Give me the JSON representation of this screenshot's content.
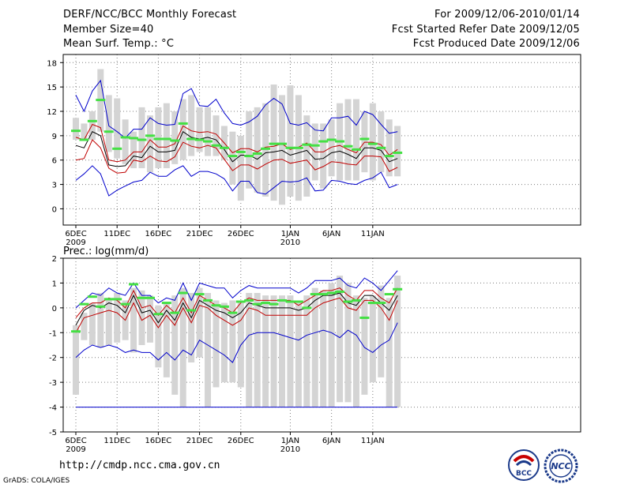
{
  "header": {
    "title": "DERF/NCC/BCC Monthly Forecast",
    "member_size": "Member Size=40",
    "variable1": "Mean Surf. Temp.: °C",
    "period": "For 2009/12/06-2010/01/14",
    "started": "Fcst Started Refer Date 2009/12/05",
    "produced": "Fcst Produced Date 2009/12/06"
  },
  "footer": {
    "url": "http://cmdp.ncc.cma.gov.cn",
    "credit": "GrADS: COLA/IGES",
    "logo_bcc": "BCC",
    "logo_ncc": "NCC"
  },
  "colors": {
    "frame": "#000000",
    "grid": "#7f7f7f",
    "bar": "#d4d4d4",
    "mean": "#000000",
    "inner": "#c00000",
    "outer": "#0000cc",
    "obs": "#44e044"
  },
  "chart_data": [
    {
      "type": "line",
      "title": "Mean Surf. Temp.: °C",
      "ylabel": "°C",
      "ylim": [
        -2,
        19
      ],
      "yticks": [
        0,
        3,
        6,
        9,
        12,
        15,
        18
      ],
      "x_days": 40,
      "xticks": [
        {
          "label": "6DEC",
          "index": 0,
          "year": "2009"
        },
        {
          "label": "11DEC",
          "index": 5
        },
        {
          "label": "16DEC",
          "index": 10
        },
        {
          "label": "21DEC",
          "index": 15
        },
        {
          "label": "26DEC",
          "index": 20
        },
        {
          "label": "1JAN",
          "index": 26,
          "year": "2010"
        },
        {
          "label": "6JAN",
          "index": 31
        },
        {
          "label": "11JAN",
          "index": 36
        }
      ],
      "range_bars": [
        [
          8.5,
          11.2
        ],
        [
          8.5,
          10.5
        ],
        [
          8.5,
          12
        ],
        [
          9.5,
          17.2
        ],
        [
          7,
          14
        ],
        [
          6.2,
          13.6
        ],
        [
          5.5,
          11
        ],
        [
          5,
          9.5
        ],
        [
          5,
          12.5
        ],
        [
          4.5,
          11.5
        ],
        [
          5,
          12.5
        ],
        [
          5,
          13
        ],
        [
          5.5,
          12
        ],
        [
          6,
          13.5
        ],
        [
          6.5,
          14
        ],
        [
          7,
          12.5
        ],
        [
          6.5,
          12.5
        ],
        [
          6.5,
          11.5
        ],
        [
          6,
          10.2
        ],
        [
          3,
          9.5
        ],
        [
          1,
          9
        ],
        [
          2.5,
          12
        ],
        [
          2,
          12.5
        ],
        [
          1.5,
          13
        ],
        [
          1,
          15.3
        ],
        [
          0.5,
          14
        ],
        [
          1.5,
          15.2
        ],
        [
          1,
          14
        ],
        [
          1.5,
          11.5
        ],
        [
          3.5,
          10.5
        ],
        [
          2.5,
          10.5
        ],
        [
          4,
          11
        ],
        [
          3.5,
          13
        ],
        [
          3.5,
          13.5
        ],
        [
          3.5,
          13.5
        ],
        [
          4.5,
          12
        ],
        [
          3.5,
          13
        ],
        [
          4.5,
          12
        ],
        [
          4,
          11
        ],
        [
          4,
          10.2
        ]
      ],
      "series": [
        {
          "name": "ensemble-mean",
          "values": [
            7.8,
            7.5,
            9.5,
            9,
            5.4,
            5.2,
            5.3,
            6.5,
            6.3,
            7.7,
            7,
            7,
            7.2,
            9.5,
            8.8,
            8.6,
            8.8,
            8.5,
            7.3,
            5.8,
            6.6,
            6.6,
            6.1,
            6.9,
            7,
            7.2,
            6.6,
            6.9,
            7.2,
            6.1,
            6.2,
            6.9,
            7.1,
            6.7,
            6.2,
            7.5,
            7.5,
            7.2,
            5.8,
            6.2
          ]
        },
        {
          "name": "upper-inner",
          "values": [
            8.8,
            8.5,
            10.4,
            10,
            6,
            5.8,
            6,
            7,
            7,
            8.5,
            7.6,
            7.6,
            8,
            10.2,
            9.6,
            9.4,
            9.5,
            9.2,
            8.1,
            6.9,
            7.4,
            7.4,
            7,
            7.6,
            7.7,
            8,
            7.3,
            7.6,
            8.1,
            7,
            7,
            7.6,
            7.8,
            7.3,
            6.9,
            8.2,
            8.2,
            7.9,
            6.6,
            7.3
          ]
        },
        {
          "name": "lower-inner",
          "values": [
            6,
            6.2,
            8.5,
            7.5,
            5,
            4.4,
            4.5,
            6,
            5.8,
            6.5,
            5.9,
            5.8,
            6.4,
            8.2,
            7.7,
            7.5,
            7.8,
            7.5,
            6.1,
            4.7,
            5.4,
            5.4,
            4.9,
            5.5,
            6,
            6.1,
            5.6,
            5.8,
            6,
            4.8,
            5.2,
            5.8,
            5.7,
            5.5,
            5.4,
            6.5,
            6.5,
            6.4,
            4.6,
            5.1
          ]
        },
        {
          "name": "upper-outer",
          "values": [
            14,
            12,
            14.5,
            15.8,
            10.2,
            9.5,
            8.7,
            9.8,
            9.8,
            11.2,
            10.5,
            10.3,
            10.4,
            14.2,
            14.8,
            12.7,
            12.6,
            13.5,
            11.8,
            10.5,
            10.3,
            10.7,
            11.4,
            12.8,
            13.6,
            12.9,
            10.5,
            10.3,
            10.6,
            9.7,
            9.6,
            11.2,
            11.2,
            11.4,
            10.3,
            12,
            11.6,
            10.4,
            9.3,
            9.5
          ]
        },
        {
          "name": "lower-outer",
          "values": [
            3.5,
            4.3,
            5.3,
            4.3,
            1.6,
            2.3,
            2.8,
            3.3,
            3.5,
            4.5,
            4,
            4,
            4.8,
            5.3,
            4,
            4.6,
            4.6,
            4.3,
            3.7,
            2.2,
            3.4,
            3.4,
            2,
            1.8,
            2.6,
            3.4,
            3.3,
            3.4,
            3.8,
            2.2,
            2.3,
            3.5,
            3.4,
            3.1,
            3,
            3.5,
            3.8,
            4.5,
            2.6,
            3
          ]
        }
      ],
      "markers": {
        "name": "observed",
        "values": [
          9.6,
          8.5,
          10.8,
          13.4,
          9.5,
          7.4,
          8.8,
          8.7,
          8.5,
          9,
          8.6,
          8.6,
          8.4,
          10.5,
          8.6,
          8.5,
          8.3,
          7.8,
          7.5,
          6.5,
          7,
          6.5,
          6.8,
          7.4,
          8,
          8,
          7.5,
          7.5,
          7.9,
          7.8,
          8.3,
          8.5,
          8.3,
          7.7,
          7.3,
          8.6,
          8,
          7.5,
          6.5,
          6.9
        ]
      }
    },
    {
      "type": "line",
      "title": "Prec.: log(mm/d)",
      "ylabel": "log(mm/d)",
      "ylim": [
        -5,
        2
      ],
      "yticks": [
        -5,
        -4,
        -3,
        -2,
        -1,
        0,
        1,
        2
      ],
      "x_days": 40,
      "xticks": [
        {
          "label": "6DEC",
          "index": 0,
          "year": "2009"
        },
        {
          "label": "11DEC",
          "index": 5
        },
        {
          "label": "16DEC",
          "index": 10
        },
        {
          "label": "21DEC",
          "index": 15
        },
        {
          "label": "26DEC",
          "index": 20
        },
        {
          "label": "1JAN",
          "index": 26,
          "year": "2010"
        },
        {
          "label": "6JAN",
          "index": 31
        },
        {
          "label": "11JAN",
          "index": 36
        }
      ],
      "range_bars": [
        [
          -3.5,
          -0.7
        ],
        [
          -1.3,
          -0.2
        ],
        [
          -1.5,
          0.2
        ],
        [
          -1.6,
          0.6
        ],
        [
          -1.5,
          0.4
        ],
        [
          -1.4,
          0.6
        ],
        [
          -1.3,
          0.3
        ],
        [
          -1.8,
          0.8
        ],
        [
          -1.5,
          0.7
        ],
        [
          -1.4,
          0.5
        ],
        [
          -2.4,
          0.1
        ],
        [
          -2.8,
          0.2
        ],
        [
          -3.5,
          0.5
        ],
        [
          -4,
          0.8
        ],
        [
          -2.2,
          0.6
        ],
        [
          -2,
          0.8
        ],
        [
          -4,
          0.6
        ],
        [
          -3.2,
          0.3
        ],
        [
          -3,
          0.2
        ],
        [
          -3,
          0.3
        ],
        [
          -3.2,
          0.2
        ],
        [
          -4,
          0.6
        ],
        [
          -4,
          0.6
        ],
        [
          -4,
          0.5
        ],
        [
          -4,
          0.5
        ],
        [
          -4,
          0.5
        ],
        [
          -4,
          0.5
        ],
        [
          -4,
          0.2
        ],
        [
          -4,
          0.5
        ],
        [
          -4,
          0.8
        ],
        [
          -4,
          0.7
        ],
        [
          -4,
          1.0
        ],
        [
          -3.8,
          1.3
        ],
        [
          -3.8,
          1.0
        ],
        [
          -4,
          0.5
        ],
        [
          -3.5,
          0.4
        ],
        [
          -3,
          0.5
        ],
        [
          -2.8,
          0.9
        ],
        [
          -4,
          0.4
        ],
        [
          -4,
          1.3
        ]
      ],
      "series": [
        {
          "name": "ensemble-mean",
          "values": [
            -0.7,
            -0.1,
            0.1,
            0,
            0.2,
            0.1,
            -0.2,
            0.5,
            -0.2,
            -0.1,
            -0.6,
            -0.1,
            -0.5,
            0.2,
            -0.4,
            0.3,
            0.1,
            -0.1,
            -0.2,
            -0.4,
            -0.2,
            0.2,
            0.1,
            0,
            0,
            0,
            0,
            -0.1,
            0,
            0.3,
            0.5,
            0.5,
            0.6,
            0.2,
            0.1,
            0.5,
            0.5,
            0.2,
            -0.1,
            0.5
          ]
        },
        {
          "name": "upper-inner",
          "values": [
            -0.4,
            0,
            0.2,
            0.2,
            0.4,
            0.3,
            0,
            0.7,
            0,
            0.1,
            -0.3,
            0.1,
            -0.2,
            0.4,
            -0.2,
            0.5,
            0.3,
            0.1,
            0,
            -0.2,
            0.2,
            0.4,
            0.3,
            0.3,
            0.3,
            0.3,
            0.3,
            0.1,
            0.3,
            0.5,
            0.7,
            0.7,
            0.8,
            0.5,
            0.3,
            0.7,
            0.7,
            0.4,
            0.2,
            0.8
          ]
        },
        {
          "name": "lower-inner",
          "values": [
            -1,
            -0.4,
            -0.3,
            -0.2,
            -0.1,
            -0.2,
            -0.5,
            0.2,
            -0.5,
            -0.3,
            -0.8,
            -0.3,
            -0.7,
            0,
            -0.6,
            0.1,
            0,
            -0.3,
            -0.5,
            -0.7,
            -0.5,
            0,
            -0.1,
            -0.3,
            -0.3,
            -0.3,
            -0.3,
            -0.3,
            -0.3,
            0,
            0.2,
            0.3,
            0.4,
            0,
            -0.1,
            0.3,
            0.3,
            0,
            -0.5,
            0.3
          ]
        },
        {
          "name": "upper-outer",
          "values": [
            0,
            0.3,
            0.6,
            0.5,
            0.8,
            0.6,
            0.5,
            1,
            0.5,
            0.5,
            0.2,
            0.4,
            0.3,
            1,
            0.3,
            1,
            0.9,
            0.8,
            0.8,
            0.4,
            0.7,
            0.9,
            0.8,
            0.8,
            0.8,
            0.8,
            0.8,
            0.6,
            0.8,
            1.1,
            1.1,
            1.1,
            1.2,
            0.9,
            0.8,
            1.2,
            1.0,
            0.7,
            1.1,
            1.5
          ]
        },
        {
          "name": "lower-outer",
          "values": [
            -2,
            -1.7,
            -1.5,
            -1.6,
            -1.5,
            -1.6,
            -1.8,
            -1.7,
            -1.8,
            -1.8,
            -2.1,
            -1.8,
            -2.1,
            -1.7,
            -1.9,
            -1.3,
            -1.5,
            -1.7,
            -1.9,
            -2.2,
            -1.5,
            -1.1,
            -1.0,
            -1.0,
            -1.0,
            -1.1,
            -1.2,
            -1.3,
            -1.1,
            -1.0,
            -0.9,
            -1.0,
            -1.2,
            -0.9,
            -1.1,
            -1.6,
            -1.8,
            -1.5,
            -1.3,
            -0.6
          ]
        }
      ],
      "markers": {
        "name": "observed",
        "values": [
          -0.95,
          0.15,
          0.45,
          0.05,
          0.35,
          0.35,
          0.15,
          0.95,
          0.4,
          0.4,
          -0.25,
          0.2,
          -0.2,
          0.6,
          -0.1,
          0.55,
          0.3,
          0.1,
          0.05,
          -0.2,
          0.25,
          0.3,
          0.15,
          0.2,
          0.15,
          0.3,
          0.25,
          0.25,
          0,
          0.55,
          0.55,
          0.6,
          0.65,
          0.25,
          0.3,
          -0.4,
          0.2,
          0.2,
          0.55,
          0.75
        ]
      }
    }
  ]
}
